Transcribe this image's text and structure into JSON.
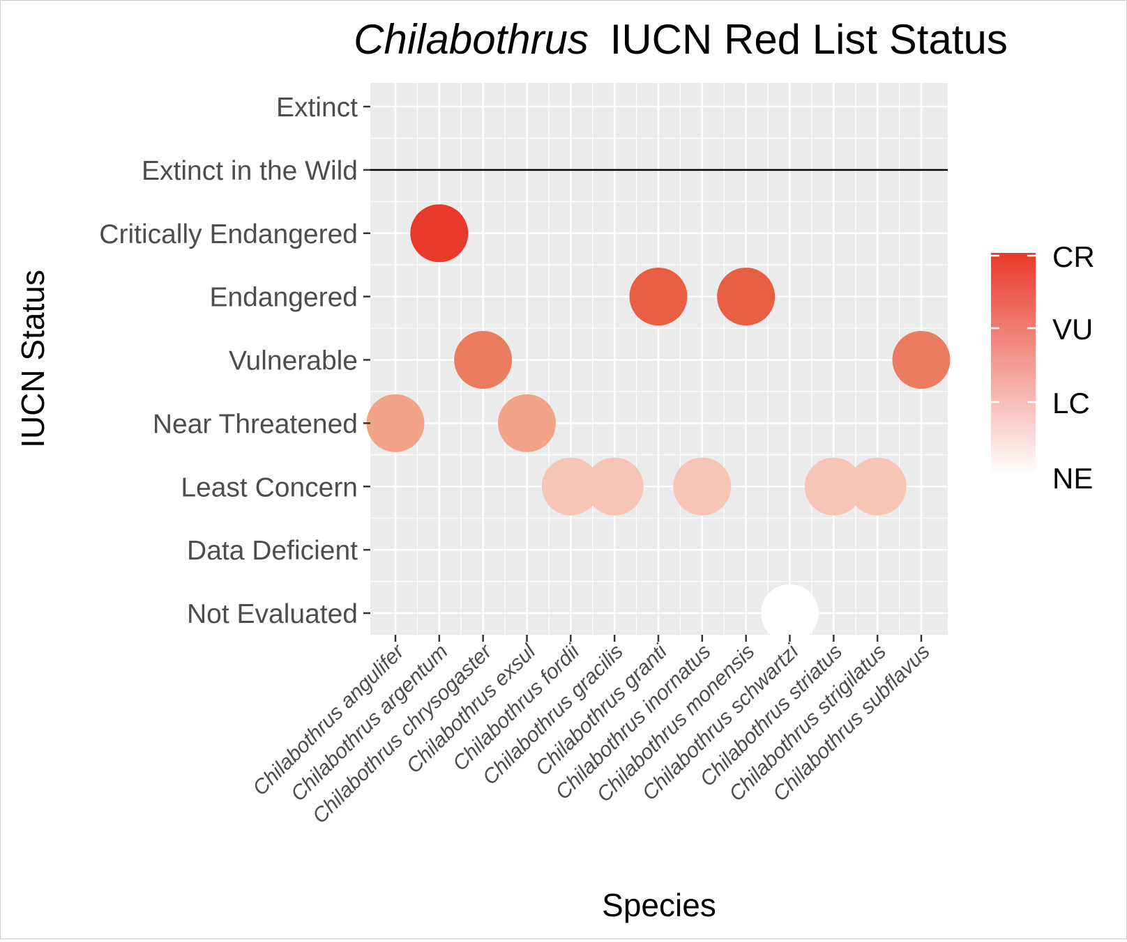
{
  "chart_data": {
    "type": "scatter",
    "title_italic": "Chilabothrus",
    "title_rest": "IUCN Red List Status",
    "xlabel": "Species",
    "ylabel": "IUCN Status",
    "categories": [
      "Chilabothrus angulifer",
      "Chilabothrus argentum",
      "Chilabothrus chrysogaster",
      "Chilabothrus exsul",
      "Chilabothrus fordii",
      "Chilabothrus gracilis",
      "Chilabothrus granti",
      "Chilabothrus inornatus",
      "Chilabothrus monensis",
      "Chilabothrus schwartzi",
      "Chilabothrus striatus",
      "Chilabothrus strigilatus",
      "Chilabothrus subflavus"
    ],
    "status_levels": [
      "Extinct",
      "Extinct in the Wild",
      "Critically Endangered",
      "Endangered",
      "Vulnerable",
      "Near Threatened",
      "Least Concern",
      "Data Deficient",
      "Not Evaluated"
    ],
    "points": [
      {
        "species": "Chilabothrus angulifer",
        "status": "Near Threatened",
        "color": "#f1a488"
      },
      {
        "species": "Chilabothrus argentum",
        "status": "Critically Endangered",
        "color": "#e8392a"
      },
      {
        "species": "Chilabothrus chrysogaster",
        "status": "Vulnerable",
        "color": "#eb7c5f"
      },
      {
        "species": "Chilabothrus exsul",
        "status": "Near Threatened",
        "color": "#f1a488"
      },
      {
        "species": "Chilabothrus fordii",
        "status": "Least Concern",
        "color": "#f6c5b6"
      },
      {
        "species": "Chilabothrus gracilis",
        "status": "Least Concern",
        "color": "#f6c5b6"
      },
      {
        "species": "Chilabothrus granti",
        "status": "Endangered",
        "color": "#e85e43"
      },
      {
        "species": "Chilabothrus inornatus",
        "status": "Least Concern",
        "color": "#f6c5b6"
      },
      {
        "species": "Chilabothrus monensis",
        "status": "Endangered",
        "color": "#e85e43"
      },
      {
        "species": "Chilabothrus schwartzi",
        "status": "Not Evaluated",
        "color": "#ffffff"
      },
      {
        "species": "Chilabothrus striatus",
        "status": "Least Concern",
        "color": "#f6c5b6"
      },
      {
        "species": "Chilabothrus strigilatus",
        "status": "Least Concern",
        "color": "#f6c5b6"
      },
      {
        "species": "Chilabothrus subflavus",
        "status": "Vulnerable",
        "color": "#eb7c5f"
      }
    ],
    "reference_line": {
      "status": "Extinct in the Wild",
      "color": "#000000"
    },
    "legend": {
      "placement": "right",
      "labels": [
        "CR",
        "VU",
        "LC",
        "NE"
      ],
      "gradient_top": "#e8392a",
      "gradient_bottom": "#ffffff"
    },
    "grid": true,
    "panel_background": "#ebebeb"
  }
}
